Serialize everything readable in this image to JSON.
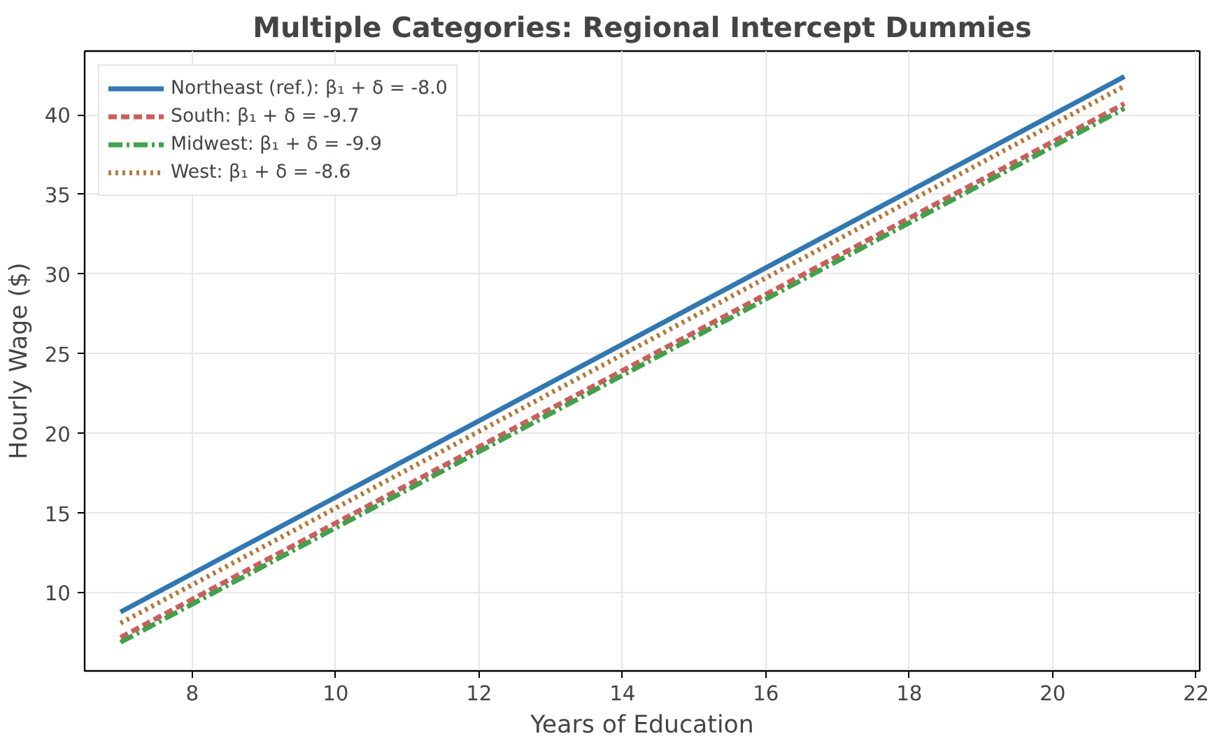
{
  "chart_data": {
    "type": "line",
    "title": "Multiple Categories: Regional Intercept Dummies",
    "xlabel": "Years of Education",
    "ylabel": "Hourly Wage ($)",
    "x": [
      7,
      21
    ],
    "series": [
      {
        "name": "Northeast (ref.): β₁ + δ = -8.0",
        "color": "#2f78b5",
        "values": [
          8.8,
          42.4
        ],
        "line_style": "solid"
      },
      {
        "name": "South: β₁ + δ = -9.7",
        "color": "#d05c5c",
        "values": [
          7.2,
          40.7
        ],
        "line_style": "dashed"
      },
      {
        "name": "Midwest: β₁ + δ = -9.9",
        "color": "#3ea34a",
        "values": [
          6.9,
          40.4
        ],
        "line_style": "dashdot"
      },
      {
        "name": "West: β₁ + δ = -8.6",
        "color": "#b5793a",
        "values": [
          8.1,
          41.8
        ],
        "line_style": "dotted"
      }
    ],
    "xlim": [
      6.5,
      22.05
    ],
    "ylim": [
      5.1,
      44.0
    ],
    "xticks": [
      8,
      10,
      12,
      14,
      16,
      18,
      20,
      22
    ],
    "yticks": [
      10,
      15,
      20,
      25,
      30,
      35,
      40
    ],
    "grid": true,
    "legend": "top left"
  }
}
